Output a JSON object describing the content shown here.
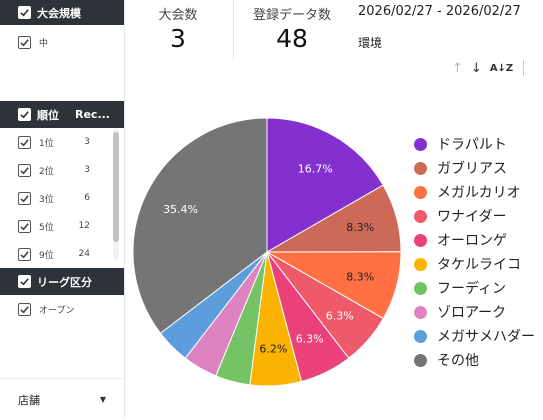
{
  "sidebar": {
    "taikai": {
      "header": "大会規模",
      "items": [
        {
          "label": "中"
        }
      ]
    },
    "rank": {
      "header": "順位",
      "header_col2": "Rec...",
      "items": [
        {
          "label": "1位",
          "count": "3"
        },
        {
          "label": "2位",
          "count": "3"
        },
        {
          "label": "3位",
          "count": "6"
        },
        {
          "label": "5位",
          "count": "12"
        },
        {
          "label": "9位",
          "count": "24"
        }
      ]
    },
    "league": {
      "header": "リーグ区分",
      "items": [
        {
          "label": "オープン"
        }
      ]
    },
    "store": {
      "label": "店舗"
    }
  },
  "kpis": {
    "tournaments": {
      "label": "大会数",
      "value": "3"
    },
    "records": {
      "label": "登録データ数",
      "value": "48"
    }
  },
  "date_range": "2026/02/27 - 2026/02/27",
  "environment_label": "環境",
  "toolbar": {
    "sort_up": "↑",
    "sort_down": "↓",
    "sort_az": "A↓Z"
  },
  "chart_data": {
    "type": "pie",
    "slices": [
      {
        "name": "ドラパルト",
        "value": 16.7,
        "label": "16.7%",
        "color": "#8430ce"
      },
      {
        "name": "ガブリアス",
        "value": 8.3,
        "label": "8.3%",
        "color": "#cd6a57"
      },
      {
        "name": "メガルカリオ",
        "value": 8.3,
        "label": "8.3%",
        "color": "#ff7043"
      },
      {
        "name": "ワナイダー",
        "value": 6.3,
        "label": "6.3%",
        "color": "#ef5a6a"
      },
      {
        "name": "オーロンゲ",
        "value": 6.3,
        "label": "6.3%",
        "color": "#ec407a"
      },
      {
        "name": "タケルライコ",
        "value": 6.2,
        "label": "6.2%",
        "color": "#f9b300"
      },
      {
        "name": "フーディン",
        "value": 4.2,
        "label": "",
        "color": "#74c365"
      },
      {
        "name": "ゾロアーク",
        "value": 4.2,
        "label": "",
        "color": "#de83c2"
      },
      {
        "name": "メガサメハダー",
        "value": 4.2,
        "label": "",
        "color": "#5c9ddb"
      },
      {
        "name": "その他",
        "value": 35.4,
        "label": "35.4%",
        "color": "#757575"
      }
    ],
    "legend_position": "right"
  }
}
